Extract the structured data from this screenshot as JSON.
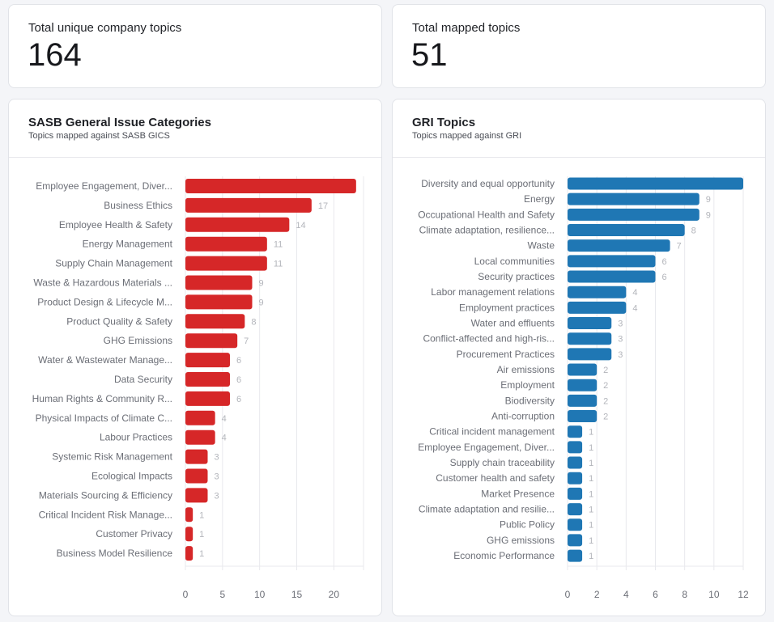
{
  "stats": [
    {
      "label": "Total unique company topics",
      "value": "164"
    },
    {
      "label": "Total mapped topics",
      "value": "51"
    }
  ],
  "chart_data": [
    {
      "type": "bar",
      "orientation": "horizontal",
      "title": "SASB General Issue Categories",
      "subtitle": "Topics mapped against SASB GICS",
      "color": "#d62728",
      "xlim": [
        0,
        24
      ],
      "ticks": [
        0,
        5,
        10,
        15,
        20
      ],
      "grid": true,
      "categories": [
        "Employee Engagement, Diver...",
        "Business Ethics",
        "Employee Health & Safety",
        "Energy Management",
        "Supply Chain Management",
        "Waste & Hazardous Materials ...",
        "Product Design & Lifecycle M...",
        "Product Quality & Safety",
        "GHG Emissions",
        "Water & Wastewater Manage...",
        "Data Security",
        "Human Rights & Community R...",
        "Physical Impacts of Climate C...",
        "Labour Practices",
        "Systemic Risk Management",
        "Ecological Impacts",
        "Materials Sourcing & Efficiency",
        "Critical Incident Risk Manage...",
        "Customer Privacy",
        "Business Model Resilience"
      ],
      "values": [
        23,
        17,
        14,
        11,
        11,
        9,
        9,
        8,
        7,
        6,
        6,
        6,
        4,
        4,
        3,
        3,
        3,
        1,
        1,
        1
      ],
      "show_label": [
        false,
        true,
        true,
        true,
        true,
        true,
        true,
        true,
        true,
        true,
        true,
        true,
        true,
        true,
        true,
        true,
        true,
        true,
        true,
        true
      ]
    },
    {
      "type": "bar",
      "orientation": "horizontal",
      "title": "GRI Topics",
      "subtitle": "Topics mapped against GRI",
      "color": "#1f77b4",
      "xlim": [
        0,
        12
      ],
      "ticks": [
        0,
        2,
        4,
        6,
        8,
        10,
        12
      ],
      "grid": true,
      "categories": [
        "Diversity and equal opportunity",
        "Energy",
        "Occupational Health and Safety",
        "Climate adaptation, resilience...",
        "Waste",
        "Local communities",
        "Security practices",
        "Labor management relations",
        "Employment practices",
        "Water and effluents",
        "Conflict-affected and high-ris...",
        "Procurement Practices",
        "Air emissions",
        "Employment",
        "Biodiversity",
        "Anti-corruption",
        "Critical incident management",
        "Employee Engagement, Diver...",
        "Supply chain traceability",
        "Customer health and safety",
        "Market Presence",
        "Climate adaptation and resilie...",
        "Public Policy",
        "GHG emissions",
        "Economic Performance"
      ],
      "values": [
        12,
        9,
        9,
        8,
        7,
        6,
        6,
        4,
        4,
        3,
        3,
        3,
        2,
        2,
        2,
        2,
        1,
        1,
        1,
        1,
        1,
        1,
        1,
        1,
        1
      ],
      "show_label": [
        false,
        true,
        true,
        true,
        true,
        true,
        true,
        true,
        true,
        true,
        true,
        true,
        true,
        true,
        true,
        true,
        true,
        true,
        true,
        true,
        true,
        true,
        true,
        true,
        true
      ]
    }
  ]
}
